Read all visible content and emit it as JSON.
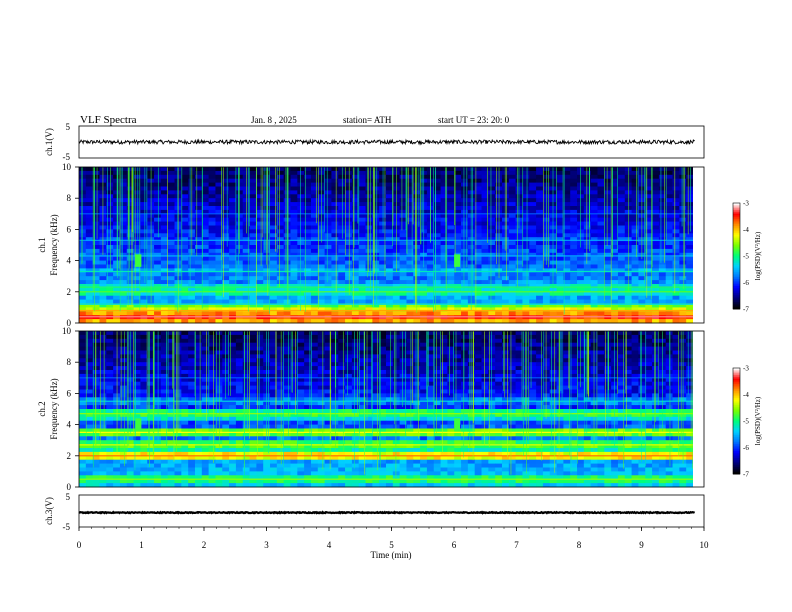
{
  "header": {
    "title": "VLF  Spectra",
    "date": "Jan.  8  ,  2025",
    "station": "station= ATH",
    "start_ut": "start  UT  =    23: 20: 0"
  },
  "colors": {
    "trace": "#000000",
    "spectrogram_colormap": [
      "#000000",
      "#000080",
      "#0000ff",
      "#0078ff",
      "#00d2ff",
      "#00ff78",
      "#78ff00",
      "#ffff00",
      "#ff8c00",
      "#ff0000",
      "#ffffff"
    ]
  },
  "chart_data": [
    {
      "type": "line",
      "name_label": "ch.1(V)",
      "ylabel": "ch.1(V)",
      "ylim": [
        -5,
        5
      ],
      "y_ticks": [
        "5",
        "-5"
      ],
      "xlim": [
        0,
        10
      ],
      "description_values": {
        "mean": 0.0,
        "amplitude_approx": 0.6
      }
    },
    {
      "type": "heatmap",
      "ylabel": "ch.1\nFrequency  (kHz)",
      "ylabel_lines": [
        "ch.1",
        "Frequency  (kHz)"
      ],
      "ylim": [
        0,
        10
      ],
      "y_ticks": [
        "10",
        "8",
        "6",
        "4",
        "2",
        "0"
      ],
      "xlim": [
        0,
        9.85
      ],
      "colorbar": {
        "label": "log(PSD)(V²/Hz)",
        "range": [
          -7,
          -3
        ],
        "ticks": [
          "-3",
          "-4",
          "-5",
          "-6",
          "-7"
        ]
      },
      "bands_khz": [
        {
          "f": 0.4,
          "level": -3.5
        },
        {
          "f": 0.8,
          "level": -4.2
        },
        {
          "f": 1.2,
          "level": -5.6
        },
        {
          "f": 2.0,
          "level": -5.0
        },
        {
          "f": 2.3,
          "level": -5.2
        },
        {
          "f": 3.3,
          "level": -5.5
        },
        {
          "f": 4.3,
          "level": -5.8
        },
        {
          "f": 5.3,
          "level": -5.9
        },
        {
          "f": 7.0,
          "level": -6.2
        }
      ],
      "events_min": [
        0.95,
        6.05
      ]
    },
    {
      "type": "heatmap",
      "ylabel": "ch.2\nFrequency  (kHz)",
      "ylabel_lines": [
        "ch.2",
        "Frequency  (kHz)"
      ],
      "ylim": [
        0,
        10
      ],
      "y_ticks": [
        "10",
        "8",
        "6",
        "4",
        "2",
        "0"
      ],
      "xlim": [
        0,
        9.85
      ],
      "colorbar": {
        "label": "log(PSD)(V²/Hz)",
        "range": [
          -7,
          -3
        ],
        "ticks": [
          "-3",
          "-4",
          "-5",
          "-6",
          "-7"
        ]
      },
      "bands_khz": [
        {
          "f": 0.5,
          "level": -4.8
        },
        {
          "f": 2.0,
          "level": -4.0
        },
        {
          "f": 2.7,
          "level": -4.6
        },
        {
          "f": 3.5,
          "level": -4.5
        },
        {
          "f": 4.7,
          "level": -4.8
        },
        {
          "f": 5.5,
          "level": -5.6
        },
        {
          "f": 7.0,
          "level": -6.2
        }
      ],
      "events_min": [
        0.95,
        6.05
      ]
    },
    {
      "type": "line",
      "ylabel": "ch.3(V)",
      "ylim": [
        -5,
        5
      ],
      "y_ticks": [
        "5",
        "-5"
      ],
      "xlim": [
        0,
        10
      ],
      "description_values": {
        "mean": -0.5,
        "amplitude_approx": 0.15
      }
    }
  ],
  "x_axis": {
    "label": "Time  (min)",
    "range": [
      0,
      10
    ],
    "ticks": [
      "0",
      "1",
      "2",
      "3",
      "4",
      "5",
      "6",
      "7",
      "8",
      "9",
      "10"
    ]
  }
}
